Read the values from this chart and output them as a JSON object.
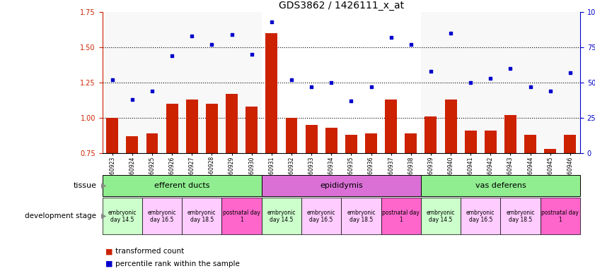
{
  "title": "GDS3862 / 1426111_x_at",
  "samples": [
    "GSM560923",
    "GSM560924",
    "GSM560925",
    "GSM560926",
    "GSM560927",
    "GSM560928",
    "GSM560929",
    "GSM560930",
    "GSM560931",
    "GSM560932",
    "GSM560933",
    "GSM560934",
    "GSM560935",
    "GSM560936",
    "GSM560937",
    "GSM560938",
    "GSM560939",
    "GSM560940",
    "GSM560941",
    "GSM560942",
    "GSM560943",
    "GSM560944",
    "GSM560945",
    "GSM560946"
  ],
  "bar_values": [
    1.0,
    0.87,
    0.89,
    1.1,
    1.13,
    1.1,
    1.17,
    1.08,
    1.6,
    1.0,
    0.95,
    0.93,
    0.88,
    0.89,
    1.13,
    0.89,
    1.01,
    1.13,
    0.91,
    0.91,
    1.02,
    0.88,
    0.78,
    0.88
  ],
  "scatter_values_pct": [
    52,
    38,
    44,
    69,
    83,
    77,
    84,
    70,
    93,
    52,
    47,
    50,
    37,
    47,
    82,
    77,
    58,
    85,
    50,
    53,
    60,
    47,
    44,
    57
  ],
  "bar_color": "#CC2200",
  "scatter_color": "#0000CC",
  "bar_ylim": [
    0.75,
    1.75
  ],
  "bar_yticks": [
    0.75,
    1.0,
    1.25,
    1.5,
    1.75
  ],
  "scatter_ylim": [
    0,
    100
  ],
  "scatter_yticks": [
    0,
    25,
    50,
    75,
    100
  ],
  "dotted_lines_bar": [
    1.0,
    1.25,
    1.5
  ],
  "tissues": [
    {
      "label": "efferent ducts",
      "start": 0,
      "end": 7,
      "color": "#90EE90"
    },
    {
      "label": "epididymis",
      "start": 8,
      "end": 15,
      "color": "#DA70D6"
    },
    {
      "label": "vas deferens",
      "start": 16,
      "end": 23,
      "color": "#90EE90"
    }
  ],
  "dev_stages": [
    {
      "label": "embryonic\nday 14.5",
      "start": 0,
      "end": 1,
      "color": "#CCFFCC"
    },
    {
      "label": "embryonic\nday 16.5",
      "start": 2,
      "end": 3,
      "color": "#FFCCFF"
    },
    {
      "label": "embryonic\nday 18.5",
      "start": 4,
      "end": 5,
      "color": "#FFCCFF"
    },
    {
      "label": "postnatal day\n1",
      "start": 6,
      "end": 7,
      "color": "#FF66CC"
    },
    {
      "label": "embryonic\nday 14.5",
      "start": 8,
      "end": 9,
      "color": "#CCFFCC"
    },
    {
      "label": "embryonic\nday 16.5",
      "start": 10,
      "end": 11,
      "color": "#FFCCFF"
    },
    {
      "label": "embryonic\nday 18.5",
      "start": 12,
      "end": 13,
      "color": "#FFCCFF"
    },
    {
      "label": "postnatal day\n1",
      "start": 14,
      "end": 15,
      "color": "#FF66CC"
    },
    {
      "label": "embryonic\nday 14.5",
      "start": 16,
      "end": 17,
      "color": "#CCFFCC"
    },
    {
      "label": "embryonic\nday 16.5",
      "start": 18,
      "end": 19,
      "color": "#FFCCFF"
    },
    {
      "label": "embryonic\nday 18.5",
      "start": 20,
      "end": 21,
      "color": "#FFCCFF"
    },
    {
      "label": "postnatal day\n1",
      "start": 22,
      "end": 23,
      "color": "#FF66CC"
    }
  ],
  "legend_bar_label": "transformed count",
  "legend_scatter_label": "percentile rank within the sample",
  "tissue_label": "tissue",
  "dev_stage_label": "development stage"
}
